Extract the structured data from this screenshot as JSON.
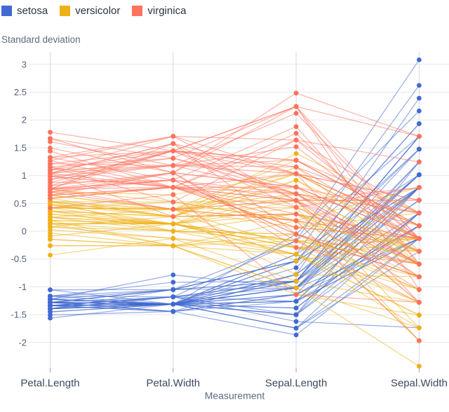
{
  "legend": {
    "items": [
      {
        "label": "setosa",
        "color": "#4269d0"
      },
      {
        "label": "versicolor",
        "color": "#efb118"
      },
      {
        "label": "virginica",
        "color": "#ff725c"
      }
    ]
  },
  "colors": {
    "setosa": "#4269d0",
    "versicolor": "#efb118",
    "virginica": "#ff725c",
    "gridline": "#e4e7eb",
    "axis_line": "#d3d8de",
    "tick_mark": "#98a1ab",
    "tick_label": "#52627a",
    "category_label": "#3d4a5c",
    "axis_title": "#5b6a80",
    "legend_label": "#273345",
    "background": "#ffffff"
  },
  "chart_data": {
    "type": "line",
    "subtype": "parallel-coordinates",
    "title": "",
    "xlabel": "Measurement",
    "ylabel": "Standard deviation",
    "categories": [
      "Petal.Length",
      "Petal.Width",
      "Sepal.Length",
      "Sepal.Width"
    ],
    "yticks": [
      3,
      2.5,
      2,
      1.5,
      1,
      0.5,
      0,
      -0.5,
      -1,
      -1.5,
      -2
    ],
    "ylim": [
      -2.5,
      3.25
    ],
    "grid": true,
    "legend_position": "top-left",
    "normalization": {
      "note": "plotted value = (raw - mean) / sd per measurement",
      "means": {
        "Petal.Length": 3.758,
        "Petal.Width": 1.1993,
        "Sepal.Length": 5.8433,
        "Sepal.Width": 3.0573
      },
      "sds": {
        "Petal.Length": 1.7653,
        "Petal.Width": 0.7622,
        "Sepal.Length": 0.8281,
        "Sepal.Width": 0.4359
      }
    },
    "series": [
      {
        "name": "setosa",
        "color": "#4269d0",
        "raw_rows": [
          [
            1.4,
            0.2,
            5.1,
            3.5
          ],
          [
            1.4,
            0.2,
            4.9,
            3.0
          ],
          [
            1.3,
            0.2,
            4.7,
            3.2
          ],
          [
            1.5,
            0.2,
            4.6,
            3.1
          ],
          [
            1.4,
            0.2,
            5.0,
            3.6
          ],
          [
            1.7,
            0.4,
            5.4,
            3.9
          ],
          [
            1.4,
            0.3,
            4.6,
            3.4
          ],
          [
            1.5,
            0.2,
            5.0,
            3.4
          ],
          [
            1.4,
            0.2,
            4.4,
            2.9
          ],
          [
            1.5,
            0.1,
            4.9,
            3.1
          ],
          [
            1.5,
            0.2,
            5.4,
            3.7
          ],
          [
            1.6,
            0.2,
            4.8,
            3.4
          ],
          [
            1.4,
            0.1,
            4.8,
            3.0
          ],
          [
            1.1,
            0.1,
            4.3,
            3.0
          ],
          [
            1.2,
            0.2,
            5.8,
            4.0
          ],
          [
            1.5,
            0.4,
            5.7,
            4.4
          ],
          [
            1.3,
            0.4,
            5.4,
            3.9
          ],
          [
            1.4,
            0.3,
            5.1,
            3.5
          ],
          [
            1.7,
            0.3,
            5.7,
            3.8
          ],
          [
            1.5,
            0.3,
            5.1,
            3.8
          ],
          [
            1.7,
            0.2,
            5.4,
            3.4
          ],
          [
            1.5,
            0.4,
            5.1,
            3.7
          ],
          [
            1.0,
            0.2,
            4.6,
            3.6
          ],
          [
            1.7,
            0.5,
            5.1,
            3.3
          ],
          [
            1.9,
            0.2,
            4.8,
            3.4
          ],
          [
            1.6,
            0.2,
            5.0,
            3.0
          ],
          [
            1.6,
            0.4,
            5.0,
            3.4
          ],
          [
            1.5,
            0.2,
            5.2,
            3.5
          ],
          [
            1.4,
            0.2,
            5.2,
            3.4
          ],
          [
            1.6,
            0.2,
            4.7,
            3.2
          ],
          [
            1.6,
            0.2,
            4.8,
            3.1
          ],
          [
            1.5,
            0.4,
            5.4,
            3.4
          ],
          [
            1.5,
            0.1,
            5.2,
            4.1
          ],
          [
            1.4,
            0.2,
            5.5,
            4.2
          ],
          [
            1.5,
            0.2,
            4.9,
            3.1
          ],
          [
            1.2,
            0.2,
            5.0,
            3.2
          ],
          [
            1.3,
            0.2,
            5.5,
            3.5
          ],
          [
            1.4,
            0.1,
            4.9,
            3.6
          ],
          [
            1.3,
            0.2,
            4.4,
            3.0
          ],
          [
            1.5,
            0.2,
            5.1,
            3.4
          ],
          [
            1.3,
            0.3,
            5.0,
            3.5
          ],
          [
            1.3,
            0.3,
            4.5,
            2.3
          ],
          [
            1.3,
            0.2,
            4.4,
            3.2
          ],
          [
            1.6,
            0.6,
            5.0,
            3.5
          ],
          [
            1.9,
            0.4,
            5.1,
            3.8
          ],
          [
            1.4,
            0.3,
            4.8,
            3.0
          ],
          [
            1.6,
            0.2,
            5.1,
            3.8
          ],
          [
            1.4,
            0.2,
            4.6,
            3.2
          ],
          [
            1.5,
            0.2,
            5.3,
            3.7
          ],
          [
            1.4,
            0.2,
            5.0,
            3.3
          ]
        ]
      },
      {
        "name": "versicolor",
        "color": "#efb118",
        "raw_rows": [
          [
            4.7,
            1.4,
            7.0,
            3.2
          ],
          [
            4.5,
            1.5,
            6.4,
            3.2
          ],
          [
            4.9,
            1.5,
            6.9,
            3.1
          ],
          [
            4.0,
            1.3,
            5.5,
            2.3
          ],
          [
            4.6,
            1.5,
            6.5,
            2.8
          ],
          [
            4.5,
            1.3,
            5.7,
            2.8
          ],
          [
            4.7,
            1.6,
            6.3,
            3.3
          ],
          [
            3.3,
            1.0,
            4.9,
            2.4
          ],
          [
            4.6,
            1.3,
            6.6,
            2.9
          ],
          [
            3.9,
            1.4,
            5.2,
            2.7
          ],
          [
            3.5,
            1.0,
            5.0,
            2.0
          ],
          [
            4.2,
            1.5,
            5.9,
            3.0
          ],
          [
            4.0,
            1.0,
            6.0,
            2.2
          ],
          [
            4.7,
            1.4,
            6.1,
            2.9
          ],
          [
            3.6,
            1.3,
            5.6,
            2.9
          ],
          [
            4.4,
            1.4,
            6.7,
            3.1
          ],
          [
            4.5,
            1.5,
            5.6,
            3.0
          ],
          [
            4.1,
            1.0,
            5.8,
            2.7
          ],
          [
            4.5,
            1.5,
            6.2,
            2.2
          ],
          [
            3.9,
            1.1,
            5.6,
            2.5
          ],
          [
            4.8,
            1.8,
            5.9,
            3.2
          ],
          [
            4.0,
            1.3,
            6.1,
            2.8
          ],
          [
            4.9,
            1.5,
            6.3,
            2.5
          ],
          [
            4.7,
            1.2,
            6.1,
            2.8
          ],
          [
            4.3,
            1.3,
            6.4,
            2.9
          ],
          [
            4.4,
            1.4,
            6.6,
            3.0
          ],
          [
            4.8,
            1.4,
            6.8,
            2.8
          ],
          [
            5.0,
            1.7,
            6.7,
            3.0
          ],
          [
            4.5,
            1.5,
            6.0,
            2.9
          ],
          [
            3.5,
            1.0,
            5.7,
            2.6
          ],
          [
            3.8,
            1.1,
            5.5,
            2.4
          ],
          [
            3.7,
            1.0,
            5.5,
            2.4
          ],
          [
            3.9,
            1.2,
            5.8,
            2.7
          ],
          [
            5.1,
            1.6,
            6.0,
            2.7
          ],
          [
            4.5,
            1.5,
            5.4,
            3.0
          ],
          [
            4.5,
            1.6,
            6.0,
            3.4
          ],
          [
            4.7,
            1.5,
            6.7,
            3.1
          ],
          [
            4.4,
            1.3,
            6.3,
            2.3
          ],
          [
            4.1,
            1.3,
            5.6,
            3.0
          ],
          [
            4.0,
            1.3,
            5.5,
            2.5
          ],
          [
            4.4,
            1.2,
            5.5,
            2.6
          ],
          [
            4.6,
            1.4,
            6.1,
            3.0
          ],
          [
            4.0,
            1.2,
            5.8,
            2.6
          ],
          [
            3.3,
            1.0,
            5.0,
            2.3
          ],
          [
            4.2,
            1.3,
            5.6,
            2.7
          ],
          [
            4.2,
            1.2,
            5.7,
            3.0
          ],
          [
            4.2,
            1.3,
            5.7,
            2.9
          ],
          [
            4.3,
            1.3,
            6.2,
            2.9
          ],
          [
            3.0,
            1.1,
            5.1,
            2.5
          ],
          [
            4.1,
            1.3,
            5.7,
            2.8
          ]
        ]
      },
      {
        "name": "virginica",
        "color": "#ff725c",
        "raw_rows": [
          [
            6.0,
            2.5,
            6.3,
            3.3
          ],
          [
            5.1,
            1.9,
            5.8,
            2.7
          ],
          [
            5.9,
            2.1,
            7.1,
            3.0
          ],
          [
            5.6,
            1.8,
            6.3,
            2.9
          ],
          [
            5.8,
            2.2,
            6.5,
            3.0
          ],
          [
            6.6,
            2.1,
            7.6,
            3.0
          ],
          [
            4.5,
            1.7,
            4.9,
            2.5
          ],
          [
            6.3,
            1.8,
            7.3,
            2.9
          ],
          [
            5.8,
            1.8,
            6.7,
            2.5
          ],
          [
            6.1,
            2.5,
            7.2,
            3.6
          ],
          [
            5.1,
            2.0,
            6.5,
            3.2
          ],
          [
            5.3,
            1.9,
            6.4,
            2.7
          ],
          [
            5.5,
            2.1,
            6.8,
            3.0
          ],
          [
            5.0,
            2.0,
            5.7,
            2.5
          ],
          [
            5.1,
            2.4,
            5.8,
            2.8
          ],
          [
            5.3,
            2.3,
            6.4,
            3.2
          ],
          [
            5.5,
            1.8,
            6.5,
            3.0
          ],
          [
            6.7,
            2.2,
            7.7,
            3.8
          ],
          [
            6.9,
            2.3,
            7.7,
            2.6
          ],
          [
            5.0,
            1.5,
            6.0,
            2.2
          ],
          [
            5.7,
            2.3,
            6.9,
            3.2
          ],
          [
            4.9,
            2.0,
            5.6,
            2.8
          ],
          [
            6.7,
            2.0,
            7.7,
            2.8
          ],
          [
            4.9,
            1.8,
            6.3,
            2.7
          ],
          [
            5.7,
            2.1,
            6.7,
            3.3
          ],
          [
            6.0,
            1.8,
            7.2,
            3.2
          ],
          [
            4.8,
            1.8,
            6.2,
            2.8
          ],
          [
            4.9,
            1.8,
            6.1,
            3.0
          ],
          [
            5.6,
            2.1,
            6.4,
            2.8
          ],
          [
            5.8,
            1.6,
            7.2,
            3.0
          ],
          [
            6.1,
            1.9,
            7.4,
            2.8
          ],
          [
            6.4,
            2.0,
            7.9,
            3.8
          ],
          [
            5.6,
            2.2,
            6.4,
            2.8
          ],
          [
            5.1,
            1.5,
            6.3,
            2.8
          ],
          [
            5.6,
            1.4,
            6.1,
            2.6
          ],
          [
            6.1,
            2.3,
            7.7,
            3.0
          ],
          [
            5.6,
            2.4,
            6.3,
            3.4
          ],
          [
            5.5,
            1.8,
            6.4,
            3.1
          ],
          [
            4.8,
            1.8,
            6.0,
            3.0
          ],
          [
            5.4,
            2.1,
            6.9,
            3.1
          ],
          [
            5.6,
            2.4,
            6.7,
            3.1
          ],
          [
            5.1,
            2.3,
            6.9,
            3.1
          ],
          [
            5.1,
            1.9,
            5.8,
            2.7
          ],
          [
            5.9,
            2.3,
            6.8,
            3.2
          ],
          [
            5.7,
            2.5,
            6.7,
            3.3
          ],
          [
            5.2,
            2.3,
            6.7,
            3.0
          ],
          [
            5.0,
            1.9,
            6.3,
            2.5
          ],
          [
            5.2,
            2.0,
            6.5,
            3.0
          ],
          [
            5.4,
            2.3,
            6.2,
            3.4
          ],
          [
            5.1,
            1.8,
            5.9,
            3.0
          ]
        ]
      }
    ]
  }
}
